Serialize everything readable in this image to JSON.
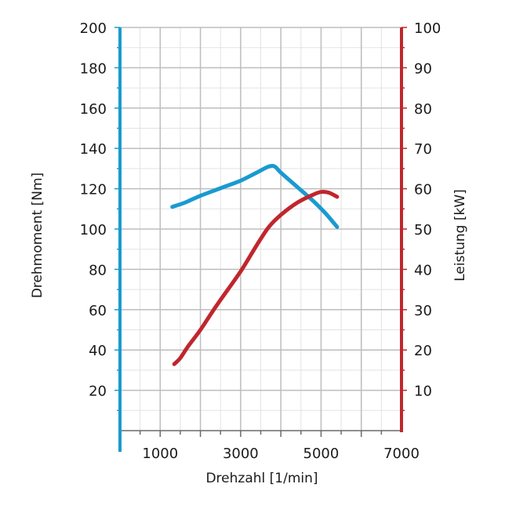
{
  "chart_data": {
    "type": "line",
    "xlabel": "Drehzahl [1/min]",
    "ylabel_left": "Drehmoment [Nm]",
    "ylabel_right": "Leistung [kW]",
    "x_range": [
      0,
      7000
    ],
    "x_ticks": [
      1000,
      3000,
      5000,
      7000
    ],
    "y_left_range": [
      0,
      200
    ],
    "y_left_ticks": [
      20,
      40,
      60,
      80,
      100,
      120,
      140,
      160,
      180,
      200
    ],
    "y_right_range": [
      0,
      100
    ],
    "y_right_ticks": [
      10,
      20,
      30,
      40,
      50,
      60,
      70,
      80,
      90,
      100
    ],
    "grid": true,
    "left_axis_color": "#1a9ad0",
    "right_axis_color": "#c0262d",
    "series": [
      {
        "axis": "left",
        "color": "#1a9ad0",
        "points": [
          [
            1300,
            111
          ],
          [
            1600,
            113
          ],
          [
            2000,
            116.5
          ],
          [
            2400,
            119.5
          ],
          [
            2600,
            121
          ],
          [
            3000,
            124
          ],
          [
            3400,
            128
          ],
          [
            3700,
            131
          ],
          [
            3850,
            131
          ],
          [
            4000,
            128
          ],
          [
            4400,
            121
          ],
          [
            4800,
            114
          ],
          [
            5100,
            108
          ],
          [
            5400,
            101
          ]
        ]
      },
      {
        "axis": "right",
        "color": "#c0262d",
        "points": [
          [
            1350,
            16.5
          ],
          [
            1500,
            18
          ],
          [
            1700,
            21
          ],
          [
            2000,
            25
          ],
          [
            2400,
            31
          ],
          [
            3000,
            39.5
          ],
          [
            3400,
            46
          ],
          [
            3700,
            50.5
          ],
          [
            4000,
            53.5
          ],
          [
            4400,
            56.5
          ],
          [
            4800,
            58.5
          ],
          [
            5000,
            59.2
          ],
          [
            5200,
            59
          ],
          [
            5400,
            58
          ]
        ]
      }
    ]
  }
}
